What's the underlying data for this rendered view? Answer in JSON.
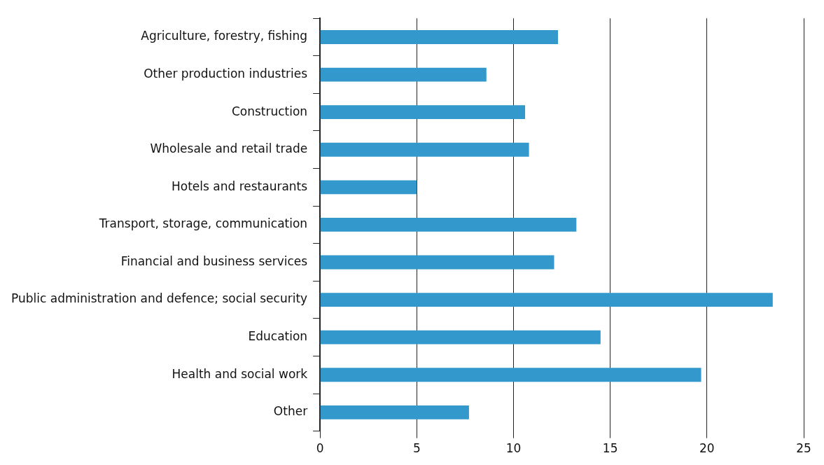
{
  "chart_data": {
    "type": "bar",
    "orientation": "horizontal",
    "categories": [
      "Agriculture, forestry, fishing",
      "Other production industries",
      "Construction",
      "Wholesale and retail trade",
      "Hotels and restaurants",
      "Transport, storage, communication",
      "Financial and business services",
      "Public administration and defence; social security",
      "Education",
      "Health and social work",
      "Other"
    ],
    "values": [
      12.3,
      8.6,
      10.6,
      10.8,
      5.0,
      13.25,
      12.1,
      23.4,
      14.5,
      19.7,
      7.7
    ],
    "color": "#3399cc",
    "xlim": [
      0,
      25
    ],
    "xticks": [
      0,
      5,
      10,
      15,
      20,
      25
    ],
    "grid": "x",
    "legend": false
  }
}
